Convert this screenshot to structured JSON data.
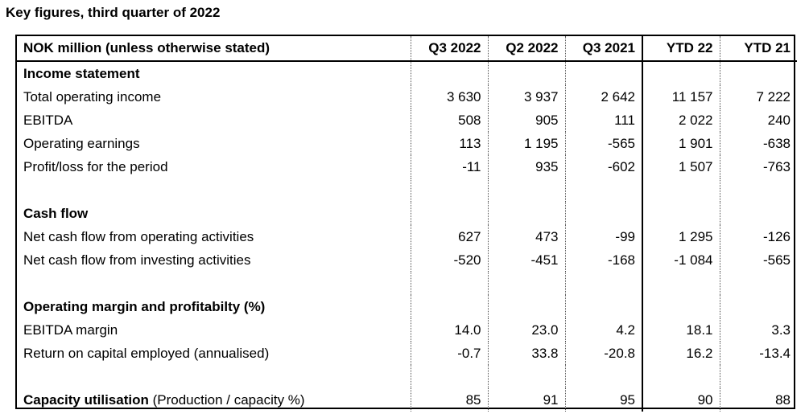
{
  "title": "Key figures, third quarter of 2022",
  "header": {
    "label": "NOK million (unless otherwise stated)",
    "columns": [
      "Q3 2022",
      "Q2 2022",
      "Q3 2021",
      "YTD 22",
      "YTD 21"
    ]
  },
  "sections": {
    "income": {
      "heading": "Income statement",
      "rows": [
        {
          "label": "Total operating income",
          "values": [
            "3 630",
            "3 937",
            "2 642",
            "11 157",
            "7 222"
          ]
        },
        {
          "label": "EBITDA",
          "values": [
            "508",
            "905",
            "111",
            "2 022",
            "240"
          ]
        },
        {
          "label": "Operating earnings",
          "values": [
            "113",
            "1 195",
            "-565",
            "1 901",
            "-638"
          ]
        },
        {
          "label": "Profit/loss for the period",
          "values": [
            "-11",
            "935",
            "-602",
            "1 507",
            "-763"
          ]
        }
      ]
    },
    "cashflow": {
      "heading": "Cash flow",
      "rows": [
        {
          "label": "Net cash flow from operating activities",
          "values": [
            "627",
            "473",
            "-99",
            "1 295",
            "-126"
          ]
        },
        {
          "label": "Net cash flow from investing activities",
          "values": [
            "-520",
            "-451",
            "-168",
            "-1 084",
            "-565"
          ]
        }
      ]
    },
    "margin": {
      "heading": "Operating margin and profitabilty (%)",
      "rows": [
        {
          "label": "EBITDA margin",
          "values": [
            "14.0",
            "23.0",
            "4.2",
            "18.1",
            "3.3"
          ]
        },
        {
          "label": "Return on capital employed (annualised)",
          "values": [
            "-0.7",
            "33.8",
            "-20.8",
            "16.2",
            "-13.4"
          ]
        }
      ]
    },
    "capacity": {
      "label_bold": "Capacity utilisation",
      "label_rest": " (Production / capacity %)",
      "values": [
        "85",
        "91",
        "95",
        "90",
        "88"
      ]
    }
  }
}
